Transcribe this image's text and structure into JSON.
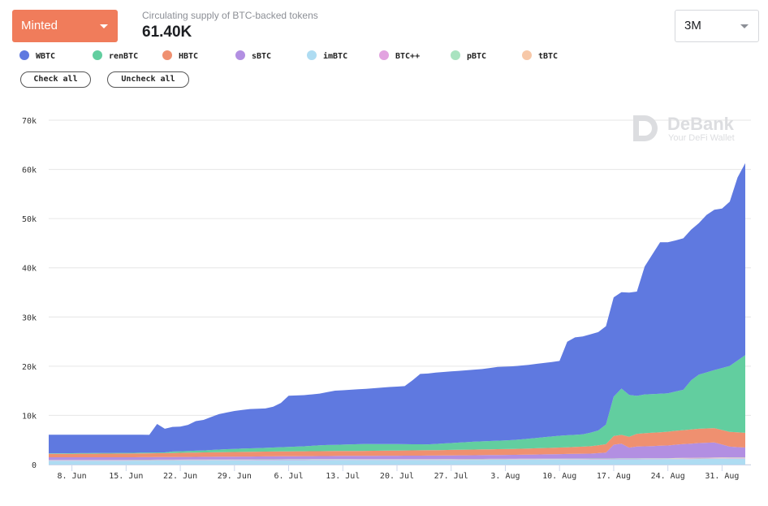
{
  "header": {
    "metric_dropdown": "Minted",
    "supply_label": "Circulating supply of BTC-backed tokens",
    "supply_value": "61.40K",
    "range_dropdown": "3M"
  },
  "controls": {
    "check_all": "Check all",
    "uncheck_all": "Uncheck all"
  },
  "watermark": {
    "brand": "DeBank",
    "tagline": "Your DeFi Wallet"
  },
  "chart_data": {
    "type": "area",
    "stacked": true,
    "x_dates": [
      "2020-06-05",
      "2020-06-06",
      "2020-06-07",
      "2020-06-08",
      "2020-06-09",
      "2020-06-10",
      "2020-06-11",
      "2020-06-12",
      "2020-06-13",
      "2020-06-14",
      "2020-06-15",
      "2020-06-16",
      "2020-06-17",
      "2020-06-18",
      "2020-06-19",
      "2020-06-20",
      "2020-06-21",
      "2020-06-22",
      "2020-06-23",
      "2020-06-24",
      "2020-06-25",
      "2020-06-26",
      "2020-06-27",
      "2020-06-28",
      "2020-06-29",
      "2020-06-30",
      "2020-07-01",
      "2020-07-02",
      "2020-07-03",
      "2020-07-04",
      "2020-07-05",
      "2020-07-06",
      "2020-07-07",
      "2020-07-08",
      "2020-07-09",
      "2020-07-10",
      "2020-07-11",
      "2020-07-12",
      "2020-07-13",
      "2020-07-14",
      "2020-07-15",
      "2020-07-16",
      "2020-07-17",
      "2020-07-18",
      "2020-07-19",
      "2020-07-20",
      "2020-07-21",
      "2020-07-22",
      "2020-07-23",
      "2020-07-24",
      "2020-07-25",
      "2020-07-26",
      "2020-07-27",
      "2020-07-28",
      "2020-07-29",
      "2020-07-30",
      "2020-07-31",
      "2020-08-01",
      "2020-08-02",
      "2020-08-03",
      "2020-08-04",
      "2020-08-05",
      "2020-08-06",
      "2020-08-07",
      "2020-08-08",
      "2020-08-09",
      "2020-08-10",
      "2020-08-11",
      "2020-08-12",
      "2020-08-13",
      "2020-08-14",
      "2020-08-15",
      "2020-08-16",
      "2020-08-17",
      "2020-08-18",
      "2020-08-19",
      "2020-08-20",
      "2020-08-21",
      "2020-08-22",
      "2020-08-23",
      "2020-08-24",
      "2020-08-25",
      "2020-08-26",
      "2020-08-27",
      "2020-08-28",
      "2020-08-29",
      "2020-08-30",
      "2020-08-31",
      "2020-09-01",
      "2020-09-02",
      "2020-09-03"
    ],
    "x_ticks": [
      "8. Jun",
      "15. Jun",
      "22. Jun",
      "29. Jun",
      "6. Jul",
      "13. Jul",
      "20. Jul",
      "27. Jul",
      "3. Aug",
      "10. Aug",
      "17. Aug",
      "24. Aug",
      "31. Aug"
    ],
    "x_tick_dates": [
      "2020-06-08",
      "2020-06-15",
      "2020-06-22",
      "2020-06-29",
      "2020-07-06",
      "2020-07-13",
      "2020-07-20",
      "2020-07-27",
      "2020-08-03",
      "2020-08-10",
      "2020-08-17",
      "2020-08-24",
      "2020-08-31"
    ],
    "y_ticks": [
      "0",
      "10k",
      "20k",
      "30k",
      "40k",
      "50k",
      "60k",
      "70k"
    ],
    "y_tick_values": [
      0,
      10000,
      20000,
      30000,
      40000,
      50000,
      60000,
      70000
    ],
    "ylim": [
      0,
      70000
    ],
    "grid": true,
    "legend_position": "top-left",
    "series": [
      {
        "name": "WBTC",
        "color": "#5f79e0",
        "keypoints": [
          [
            0,
            3800
          ],
          [
            10,
            3700
          ],
          [
            13,
            3600
          ],
          [
            14,
            5800
          ],
          [
            15,
            4800
          ],
          [
            16,
            5000
          ],
          [
            17,
            5000
          ],
          [
            18,
            5300
          ],
          [
            19,
            6000
          ],
          [
            20,
            6200
          ],
          [
            22,
            7200
          ],
          [
            24,
            7700
          ],
          [
            26,
            8000
          ],
          [
            28,
            8000
          ],
          [
            29,
            8300
          ],
          [
            30,
            9000
          ],
          [
            31,
            10400
          ],
          [
            33,
            10400
          ],
          [
            35,
            10500
          ],
          [
            37,
            11000
          ],
          [
            41,
            11200
          ],
          [
            44,
            11600
          ],
          [
            46,
            11800
          ],
          [
            47,
            13000
          ],
          [
            48,
            14300
          ],
          [
            50,
            14500
          ],
          [
            54,
            14600
          ],
          [
            56,
            14700
          ],
          [
            58,
            15000
          ],
          [
            62,
            15000
          ],
          [
            64,
            15100
          ],
          [
            66,
            15200
          ],
          [
            67,
            19000
          ],
          [
            68,
            19800
          ],
          [
            70,
            20000
          ],
          [
            71,
            20000
          ],
          [
            72,
            20000
          ],
          [
            73,
            20200
          ],
          [
            74,
            19600
          ],
          [
            75,
            20800
          ],
          [
            76,
            21200
          ],
          [
            77,
            26000
          ],
          [
            78,
            28400
          ],
          [
            79,
            30800
          ],
          [
            80,
            30700
          ],
          [
            81,
            30700
          ],
          [
            82,
            30800
          ],
          [
            83,
            30600
          ],
          [
            84,
            30800
          ],
          [
            85,
            32000
          ],
          [
            86,
            32600
          ],
          [
            87,
            32400
          ],
          [
            88,
            33400
          ],
          [
            89,
            37200
          ],
          [
            90,
            39000
          ]
        ]
      },
      {
        "name": "renBTC",
        "color": "#62ce9f",
        "keypoints": [
          [
            0,
            100
          ],
          [
            15,
            150
          ],
          [
            16,
            300
          ],
          [
            20,
            400
          ],
          [
            23,
            600
          ],
          [
            29,
            800
          ],
          [
            33,
            1000
          ],
          [
            35,
            1200
          ],
          [
            41,
            1400
          ],
          [
            49,
            1200
          ],
          [
            55,
            1600
          ],
          [
            60,
            1800
          ],
          [
            66,
            2400
          ],
          [
            69,
            2500
          ],
          [
            71,
            3000
          ],
          [
            72,
            4000
          ],
          [
            73,
            8000
          ],
          [
            74,
            9400
          ],
          [
            75,
            8500
          ],
          [
            76,
            7700
          ],
          [
            77,
            7900
          ],
          [
            80,
            7800
          ],
          [
            82,
            8200
          ],
          [
            83,
            10000
          ],
          [
            84,
            11000
          ],
          [
            86,
            11800
          ],
          [
            87,
            12600
          ],
          [
            88,
            13400
          ],
          [
            90,
            15800
          ]
        ]
      },
      {
        "name": "HBTC",
        "color": "#ef9070",
        "keypoints": [
          [
            0,
            700
          ],
          [
            15,
            800
          ],
          [
            20,
            900
          ],
          [
            30,
            1000
          ],
          [
            40,
            1000
          ],
          [
            50,
            1100
          ],
          [
            60,
            1200
          ],
          [
            65,
            1300
          ],
          [
            68,
            1400
          ],
          [
            70,
            1500
          ],
          [
            72,
            1700
          ],
          [
            74,
            1800
          ],
          [
            76,
            2600
          ],
          [
            78,
            2700
          ],
          [
            80,
            2800
          ],
          [
            84,
            2900
          ],
          [
            86,
            2900
          ],
          [
            88,
            3000
          ],
          [
            90,
            3000
          ]
        ]
      },
      {
        "name": "sBTC",
        "color": "#b28fe2",
        "keypoints": [
          [
            0,
            500
          ],
          [
            10,
            500
          ],
          [
            20,
            550
          ],
          [
            30,
            600
          ],
          [
            40,
            650
          ],
          [
            50,
            700
          ],
          [
            60,
            800
          ],
          [
            65,
            900
          ],
          [
            70,
            1000
          ],
          [
            72,
            1200
          ],
          [
            73,
            2800
          ],
          [
            74,
            3000
          ],
          [
            75,
            2200
          ],
          [
            76,
            2400
          ],
          [
            80,
            2600
          ],
          [
            84,
            3000
          ],
          [
            86,
            3100
          ],
          [
            88,
            2200
          ],
          [
            90,
            2000
          ]
        ]
      },
      {
        "name": "imBTC",
        "color": "#aedcf2",
        "keypoints": [
          [
            0,
            800
          ],
          [
            10,
            800
          ],
          [
            20,
            850
          ],
          [
            30,
            900
          ],
          [
            40,
            950
          ],
          [
            50,
            950
          ],
          [
            60,
            1000
          ],
          [
            70,
            1050
          ],
          [
            80,
            1100
          ],
          [
            85,
            1150
          ],
          [
            88,
            1200
          ],
          [
            90,
            1200
          ]
        ]
      },
      {
        "name": "BTC++",
        "color": "#e2a3e0",
        "keypoints": [
          [
            0,
            100
          ],
          [
            90,
            100
          ]
        ]
      },
      {
        "name": "pBTC",
        "color": "#a9e3c0",
        "keypoints": [
          [
            0,
            80
          ],
          [
            90,
            80
          ]
        ]
      },
      {
        "name": "tBTC",
        "color": "#f7c8a8",
        "keypoints": [
          [
            0,
            0
          ],
          [
            80,
            0
          ],
          [
            81,
            50
          ],
          [
            90,
            80
          ]
        ]
      }
    ]
  }
}
